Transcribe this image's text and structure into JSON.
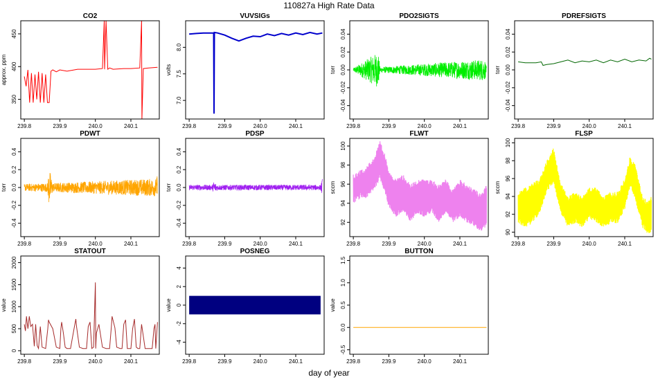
{
  "page_title": "110827a   High Rate Data",
  "xlabel": "day of year",
  "chart_data": [
    {
      "name": "CO2",
      "title": "CO2",
      "ylabel": "approx. ppm",
      "color": "#ff0000",
      "type": "line",
      "ylim": [
        320,
        470
      ],
      "yticks": [
        350,
        400,
        450
      ],
      "xlim": [
        239.79,
        240.18
      ],
      "xticks": [
        239.8,
        239.9,
        240.0,
        240.1
      ],
      "x": [
        239.8,
        239.805,
        239.81,
        239.815,
        239.82,
        239.825,
        239.83,
        239.835,
        239.84,
        239.845,
        239.85,
        239.855,
        239.86,
        239.865,
        239.87,
        239.875,
        239.88,
        239.89,
        239.9,
        239.92,
        239.95,
        240.0,
        240.02,
        240.025,
        240.026,
        240.03,
        240.035,
        240.04,
        240.05,
        240.08,
        240.1,
        240.125,
        240.13,
        240.131,
        240.135,
        240.15,
        240.175
      ],
      "y": [
        385,
        370,
        395,
        345,
        390,
        345,
        388,
        350,
        392,
        345,
        390,
        345,
        388,
        345,
        345,
        393,
        395,
        392,
        395,
        393,
        396,
        396,
        397,
        470,
        396,
        470,
        396,
        398,
        396,
        397,
        397,
        398,
        470,
        320,
        397,
        398,
        399
      ]
    },
    {
      "name": "VUVSIGs",
      "title": "VUVSIGs",
      "ylabel": "volts",
      "color": "#0000cc",
      "type": "line",
      "ylim": [
        6.65,
        8.5
      ],
      "yticks": [
        7.0,
        7.5,
        8.0
      ],
      "xlim": [
        239.79,
        240.18
      ],
      "xticks": [
        239.8,
        239.9,
        240.0,
        240.1
      ],
      "x": [
        239.8,
        239.82,
        239.84,
        239.86,
        239.869,
        239.87,
        239.871,
        239.88,
        239.9,
        239.92,
        239.94,
        239.96,
        239.98,
        240.0,
        240.02,
        240.04,
        240.06,
        240.08,
        240.1,
        240.12,
        240.14,
        240.16,
        240.175
      ],
      "y": [
        8.25,
        8.26,
        8.27,
        8.27,
        8.27,
        6.75,
        8.28,
        8.27,
        8.23,
        8.17,
        8.12,
        8.17,
        8.21,
        8.2,
        8.25,
        8.22,
        8.26,
        8.23,
        8.27,
        8.24,
        8.28,
        8.25,
        8.27
      ]
    },
    {
      "name": "PDO2SIGTS",
      "title": "PDO2SIGTS",
      "ylabel": "torr",
      "color": "#00ee00",
      "type": "noise",
      "ylim": [
        -0.055,
        0.055
      ],
      "yticks": [
        -0.04,
        -0.02,
        0.0,
        0.02,
        0.04
      ],
      "xlim": [
        239.79,
        240.18
      ],
      "xticks": [
        239.8,
        239.9,
        240.0,
        240.1
      ],
      "x": [
        239.8,
        239.87,
        239.875,
        240.17,
        240.175
      ],
      "y": [
        0.0,
        0.0,
        0.0,
        0.0,
        0.0
      ],
      "amp": [
        0.002,
        0.02,
        0.003,
        0.012,
        0.003
      ]
    },
    {
      "name": "PDREFSIGTS",
      "title": "PDREFSIGTS",
      "ylabel": "torr",
      "color": "#006600",
      "type": "line",
      "ylim": [
        -0.055,
        0.055
      ],
      "yticks": [
        -0.04,
        -0.02,
        0.0,
        0.02,
        0.04
      ],
      "xlim": [
        239.79,
        240.18
      ],
      "xticks": [
        239.8,
        239.9,
        240.0,
        240.1
      ],
      "x": [
        239.8,
        239.82,
        239.85,
        239.865,
        239.87,
        239.88,
        239.9,
        239.92,
        239.94,
        239.96,
        239.98,
        240.0,
        240.02,
        240.04,
        240.06,
        240.08,
        240.1,
        240.12,
        240.14,
        240.16,
        240.17,
        240.175
      ],
      "y": [
        0.009,
        0.008,
        0.008,
        0.009,
        0.005,
        0.006,
        0.007,
        0.009,
        0.011,
        0.008,
        0.01,
        0.009,
        0.011,
        0.008,
        0.011,
        0.009,
        0.012,
        0.009,
        0.011,
        0.01,
        0.013,
        0.012
      ]
    },
    {
      "name": "PDWT",
      "title": "PDWT",
      "ylabel": "torr",
      "color": "#ffa500",
      "type": "noise",
      "ylim": [
        -0.55,
        0.55
      ],
      "yticks": [
        -0.4,
        -0.2,
        0.0,
        0.2,
        0.4
      ],
      "xlim": [
        239.79,
        240.18
      ],
      "xticks": [
        239.8,
        239.9,
        240.0,
        240.1
      ],
      "x": [
        239.8,
        239.865,
        239.87,
        239.88,
        240.17,
        240.175
      ],
      "y": [
        0.0,
        0.0,
        0.0,
        0.0,
        0.0,
        0.0
      ],
      "amp": [
        0.04,
        0.05,
        0.22,
        0.05,
        0.1,
        0.14
      ]
    },
    {
      "name": "PDSP",
      "title": "PDSP",
      "ylabel": "torr",
      "color": "#a020f0",
      "type": "noise",
      "ylim": [
        -0.55,
        0.55
      ],
      "yticks": [
        -0.4,
        -0.2,
        0.0,
        0.2,
        0.4
      ],
      "xlim": [
        239.79,
        240.18
      ],
      "xticks": [
        239.8,
        239.9,
        240.0,
        240.1
      ],
      "x": [
        239.8,
        239.865,
        239.87,
        239.88,
        240.17,
        240.175
      ],
      "y": [
        0.0,
        0.0,
        0.0,
        0.0,
        0.0,
        0.0
      ],
      "amp": [
        0.03,
        0.03,
        0.07,
        0.03,
        0.03,
        0.1
      ]
    },
    {
      "name": "FLWT",
      "title": "FLWT",
      "ylabel": "sccm",
      "color": "#ee82ee",
      "type": "band",
      "ylim": [
        90.5,
        100.8
      ],
      "yticks": [
        92,
        94,
        96,
        98,
        100
      ],
      "xlim": [
        239.79,
        240.18
      ],
      "xticks": [
        239.8,
        239.9,
        240.0,
        240.1
      ],
      "x": [
        239.8,
        239.82,
        239.84,
        239.86,
        239.875,
        239.89,
        239.9,
        239.92,
        239.94,
        239.96,
        239.98,
        240.0,
        240.02,
        240.04,
        240.06,
        240.08,
        240.1,
        240.12,
        240.14,
        240.16,
        240.175
      ],
      "lo": [
        94.0,
        94.5,
        94.5,
        95.5,
        96.5,
        95.0,
        93.5,
        92.5,
        93.0,
        92.0,
        93.0,
        92.5,
        93.0,
        92.0,
        93.0,
        92.0,
        92.5,
        92.0,
        91.5,
        91.0,
        91.5
      ],
      "hi": [
        97.0,
        97.5,
        98.0,
        99.0,
        100.5,
        99.0,
        97.5,
        96.5,
        97.0,
        96.0,
        96.5,
        96.5,
        96.5,
        96.0,
        96.5,
        95.5,
        96.5,
        96.0,
        95.5,
        95.0,
        96.0
      ]
    },
    {
      "name": "FLSP",
      "title": "FLSP",
      "ylabel": "sccm",
      "color": "#ffff00",
      "type": "band",
      "ylim": [
        89.5,
        100.5
      ],
      "yticks": [
        90,
        92,
        94,
        96,
        98,
        100
      ],
      "xlim": [
        239.79,
        240.18
      ],
      "xticks": [
        239.8,
        239.9,
        240.0,
        240.1
      ],
      "x": [
        239.8,
        239.82,
        239.84,
        239.86,
        239.88,
        239.9,
        239.92,
        239.94,
        239.96,
        239.98,
        240.0,
        240.02,
        240.04,
        240.06,
        240.08,
        240.1,
        240.115,
        240.13,
        240.15,
        240.165,
        240.175
      ],
      "lo": [
        91.0,
        90.5,
        91.0,
        92.0,
        94.5,
        95.5,
        92.0,
        90.5,
        91.0,
        90.5,
        91.5,
        91.0,
        90.5,
        91.0,
        91.0,
        92.5,
        95.0,
        93.5,
        90.5,
        89.8,
        90.0
      ],
      "hi": [
        94.5,
        95.0,
        95.5,
        96.0,
        98.0,
        99.5,
        95.5,
        94.0,
        94.5,
        94.0,
        95.0,
        95.0,
        94.0,
        94.5,
        94.5,
        96.0,
        98.5,
        97.5,
        94.0,
        93.5,
        94.0
      ]
    },
    {
      "name": "STATOUT",
      "title": "STATOUT",
      "ylabel": "value",
      "color": "#a52a2a",
      "type": "line",
      "ylim": [
        -80,
        2150
      ],
      "yticks": [
        0,
        500,
        1000,
        1500,
        2000
      ],
      "xlim": [
        239.79,
        240.18
      ],
      "xticks": [
        239.8,
        239.9,
        240.0,
        240.1
      ],
      "x": [
        239.8,
        239.803,
        239.806,
        239.81,
        239.814,
        239.818,
        239.823,
        239.828,
        239.832,
        239.836,
        239.84,
        239.845,
        239.85,
        239.86,
        239.866,
        239.868,
        239.87,
        239.88,
        239.89,
        239.9,
        239.903,
        239.905,
        239.91,
        239.915,
        239.92,
        239.93,
        239.94,
        239.945,
        239.947,
        239.955,
        239.965,
        239.975,
        239.98,
        239.985,
        239.99,
        239.995,
        240.0,
        240.001,
        240.003,
        240.01,
        240.02,
        240.03,
        240.04,
        240.045,
        240.047,
        240.055,
        240.06,
        240.07,
        240.075,
        240.08,
        240.085,
        240.09,
        240.1,
        240.105,
        240.11,
        240.115,
        240.12,
        240.125,
        240.13,
        240.14,
        240.15,
        240.16,
        240.165,
        240.168,
        240.17,
        240.175
      ],
      "y": [
        600,
        450,
        780,
        500,
        780,
        550,
        600,
        100,
        600,
        120,
        50,
        550,
        80,
        50,
        500,
        700,
        650,
        500,
        80,
        50,
        500,
        650,
        400,
        80,
        50,
        50,
        500,
        720,
        550,
        80,
        50,
        50,
        550,
        650,
        50,
        80,
        1550,
        50,
        400,
        600,
        80,
        50,
        50,
        550,
        780,
        520,
        80,
        50,
        50,
        600,
        700,
        50,
        50,
        500,
        720,
        80,
        50,
        50,
        600,
        50,
        50,
        50,
        500,
        600,
        50,
        650
      ]
    },
    {
      "name": "POSNEG",
      "title": "POSNEG",
      "ylabel": "value",
      "color": "#000080",
      "type": "rect",
      "ylim": [
        -5.3,
        5.3
      ],
      "yticks": [
        -4,
        -2,
        0,
        2,
        4
      ],
      "xlim": [
        239.79,
        240.18
      ],
      "xticks": [
        239.8,
        239.9,
        240.0,
        240.1
      ],
      "x": [
        239.8,
        240.17
      ],
      "y": [
        -1,
        1
      ]
    },
    {
      "name": "BUTTON",
      "title": "BUTTON",
      "ylabel": "value",
      "color": "#ffa500",
      "type": "line",
      "ylim": [
        -0.6,
        1.6
      ],
      "yticks": [
        -0.5,
        0.0,
        0.5,
        1.0,
        1.5
      ],
      "xlim": [
        239.79,
        240.18
      ],
      "xticks": [
        239.8,
        239.9,
        240.0,
        240.1
      ],
      "x": [
        239.8,
        240.175
      ],
      "y": [
        0,
        0
      ]
    }
  ]
}
